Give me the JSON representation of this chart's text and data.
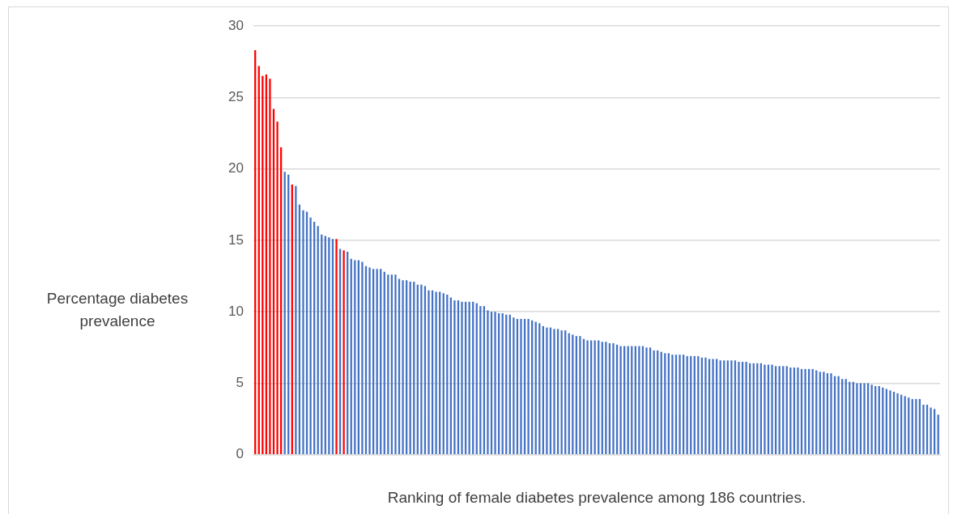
{
  "chart_data": {
    "type": "bar",
    "xlabel": "Ranking of female diabetes prevalence among 186 countries.",
    "ylabel": "Percentage diabetes prevalence",
    "categories": [
      null,
      null,
      null,
      null,
      null,
      null,
      null,
      null,
      null,
      null,
      null,
      null,
      null,
      null,
      null,
      null,
      null,
      null,
      null,
      null,
      null,
      null,
      null,
      null,
      null,
      null,
      null,
      null,
      null,
      null,
      null,
      null,
      null,
      null,
      null,
      null,
      null,
      null,
      null,
      null,
      null,
      null,
      null,
      null,
      null,
      null,
      null,
      null,
      null,
      null,
      null,
      null,
      null,
      null,
      null,
      null,
      null,
      null,
      null,
      null,
      null,
      null,
      null,
      null,
      null,
      null,
      null,
      null,
      null,
      null,
      null,
      null,
      null,
      null,
      null,
      null,
      null,
      null,
      null,
      null,
      null,
      null,
      null,
      null,
      null,
      null,
      null,
      null,
      null,
      null,
      null,
      null,
      null,
      null,
      null,
      null,
      null,
      null,
      null,
      null,
      null,
      null,
      null,
      null,
      null,
      null,
      null,
      null,
      null,
      null,
      null,
      null,
      null,
      null,
      null,
      null,
      null,
      null,
      null,
      null,
      null,
      null,
      null,
      null,
      null,
      null,
      null,
      null,
      null,
      null,
      null,
      null,
      null,
      null,
      null,
      null,
      null,
      null,
      null,
      null,
      null,
      null,
      null,
      null,
      null,
      null,
      null,
      null,
      null,
      null,
      null,
      null,
      null,
      null,
      null,
      null,
      null,
      null,
      null,
      null,
      null,
      null,
      null,
      null,
      null,
      null,
      null,
      null,
      null,
      null,
      null,
      null,
      null,
      null,
      null,
      null,
      null,
      null,
      null,
      null,
      null,
      null,
      null,
      null,
      null,
      null
    ],
    "values": [
      28.3,
      27.2,
      26.5,
      26.6,
      26.3,
      24.2,
      23.3,
      21.5,
      19.8,
      19.6,
      18.9,
      18.8,
      17.5,
      17.1,
      17.0,
      16.6,
      16.3,
      16.0,
      15.4,
      15.3,
      15.2,
      15.1,
      15.1,
      14.4,
      14.3,
      14.2,
      13.7,
      13.6,
      13.6,
      13.5,
      13.2,
      13.1,
      13.0,
      13.0,
      13.0,
      12.8,
      12.6,
      12.6,
      12.6,
      12.3,
      12.2,
      12.2,
      12.1,
      12.1,
      11.9,
      11.9,
      11.8,
      11.5,
      11.5,
      11.4,
      11.4,
      11.3,
      11.2,
      11.0,
      10.8,
      10.8,
      10.7,
      10.7,
      10.7,
      10.7,
      10.6,
      10.4,
      10.4,
      10.1,
      10.0,
      10.0,
      9.9,
      9.9,
      9.8,
      9.8,
      9.6,
      9.5,
      9.5,
      9.5,
      9.5,
      9.4,
      9.3,
      9.2,
      9.0,
      8.9,
      8.9,
      8.8,
      8.8,
      8.7,
      8.7,
      8.5,
      8.4,
      8.3,
      8.3,
      8.1,
      8.0,
      8.0,
      8.0,
      8.0,
      7.9,
      7.9,
      7.8,
      7.8,
      7.7,
      7.6,
      7.6,
      7.6,
      7.6,
      7.6,
      7.6,
      7.6,
      7.5,
      7.5,
      7.3,
      7.3,
      7.2,
      7.1,
      7.1,
      7.0,
      7.0,
      7.0,
      7.0,
      6.9,
      6.9,
      6.9,
      6.9,
      6.8,
      6.8,
      6.7,
      6.7,
      6.7,
      6.6,
      6.6,
      6.6,
      6.6,
      6.6,
      6.5,
      6.5,
      6.5,
      6.4,
      6.4,
      6.4,
      6.4,
      6.3,
      6.3,
      6.3,
      6.2,
      6.2,
      6.2,
      6.2,
      6.1,
      6.1,
      6.1,
      6.0,
      6.0,
      6.0,
      6.0,
      5.9,
      5.8,
      5.8,
      5.7,
      5.7,
      5.5,
      5.5,
      5.3,
      5.3,
      5.1,
      5.1,
      5.0,
      5.0,
      5.0,
      5.0,
      4.9,
      4.8,
      4.8,
      4.7,
      4.6,
      4.5,
      4.4,
      4.3,
      4.2,
      4.1,
      4.0,
      3.9,
      3.9,
      3.9,
      3.5,
      3.5,
      3.3,
      3.2,
      2.8
    ],
    "colors": [
      "#ff0000",
      "#ff0000",
      "#ff0000",
      "#ff0000",
      "#ff0000",
      "#ff0000",
      "#ff0000",
      "#ff0000",
      "#4472c4",
      "#4472c4",
      "#ff0000",
      "#4472c4",
      "#4472c4",
      "#4472c4",
      "#4472c4",
      "#4472c4",
      "#4472c4",
      "#4472c4",
      "#4472c4",
      "#4472c4",
      "#4472c4",
      "#4472c4",
      "#ff0000",
      "#4472c4",
      "#ff0000",
      "#4472c4",
      "#4472c4",
      "#4472c4",
      "#4472c4",
      "#4472c4",
      "#4472c4",
      "#4472c4",
      "#4472c4",
      "#4472c4",
      "#4472c4",
      "#4472c4",
      "#4472c4",
      "#4472c4",
      "#4472c4",
      "#4472c4",
      "#4472c4",
      "#4472c4",
      "#4472c4",
      "#4472c4",
      "#4472c4",
      "#4472c4",
      "#4472c4",
      "#4472c4",
      "#4472c4",
      "#4472c4",
      "#4472c4",
      "#4472c4",
      "#4472c4",
      "#4472c4",
      "#4472c4",
      "#4472c4",
      "#4472c4",
      "#4472c4",
      "#4472c4",
      "#4472c4",
      "#4472c4",
      "#4472c4",
      "#4472c4",
      "#4472c4",
      "#4472c4",
      "#4472c4",
      "#4472c4",
      "#4472c4",
      "#4472c4",
      "#4472c4",
      "#4472c4",
      "#4472c4",
      "#4472c4",
      "#4472c4",
      "#4472c4",
      "#4472c4",
      "#4472c4",
      "#4472c4",
      "#4472c4",
      "#4472c4",
      "#4472c4",
      "#4472c4",
      "#4472c4",
      "#4472c4",
      "#4472c4",
      "#4472c4",
      "#4472c4",
      "#4472c4",
      "#4472c4",
      "#4472c4",
      "#4472c4",
      "#4472c4",
      "#4472c4",
      "#4472c4",
      "#4472c4",
      "#4472c4",
      "#4472c4",
      "#4472c4",
      "#4472c4",
      "#4472c4",
      "#4472c4",
      "#4472c4",
      "#4472c4",
      "#4472c4",
      "#4472c4",
      "#4472c4",
      "#4472c4",
      "#4472c4",
      "#4472c4",
      "#4472c4",
      "#4472c4",
      "#4472c4",
      "#4472c4",
      "#4472c4",
      "#4472c4",
      "#4472c4",
      "#4472c4",
      "#4472c4",
      "#4472c4",
      "#4472c4",
      "#4472c4",
      "#4472c4",
      "#4472c4",
      "#4472c4",
      "#4472c4",
      "#4472c4",
      "#4472c4",
      "#4472c4",
      "#4472c4",
      "#4472c4",
      "#4472c4",
      "#4472c4",
      "#4472c4",
      "#4472c4",
      "#4472c4",
      "#4472c4",
      "#4472c4",
      "#4472c4",
      "#4472c4",
      "#4472c4",
      "#4472c4",
      "#4472c4",
      "#4472c4",
      "#4472c4",
      "#4472c4",
      "#4472c4",
      "#4472c4",
      "#4472c4",
      "#4472c4",
      "#4472c4",
      "#4472c4",
      "#4472c4",
      "#4472c4",
      "#4472c4",
      "#4472c4",
      "#4472c4",
      "#4472c4",
      "#4472c4",
      "#4472c4",
      "#4472c4",
      "#4472c4",
      "#4472c4",
      "#4472c4",
      "#4472c4",
      "#4472c4",
      "#4472c4",
      "#4472c4",
      "#4472c4",
      "#4472c4",
      "#4472c4",
      "#4472c4",
      "#4472c4",
      "#4472c4",
      "#4472c4",
      "#4472c4",
      "#4472c4",
      "#4472c4",
      "#4472c4",
      "#4472c4",
      "#4472c4",
      "#4472c4",
      "#4472c4",
      "#4472c4",
      "#4472c4",
      "#4472c4",
      "#4472c4"
    ],
    "ylim": [
      0,
      30
    ],
    "yticks": [
      0,
      5,
      10,
      15,
      20,
      25,
      30
    ],
    "grid": "y"
  }
}
